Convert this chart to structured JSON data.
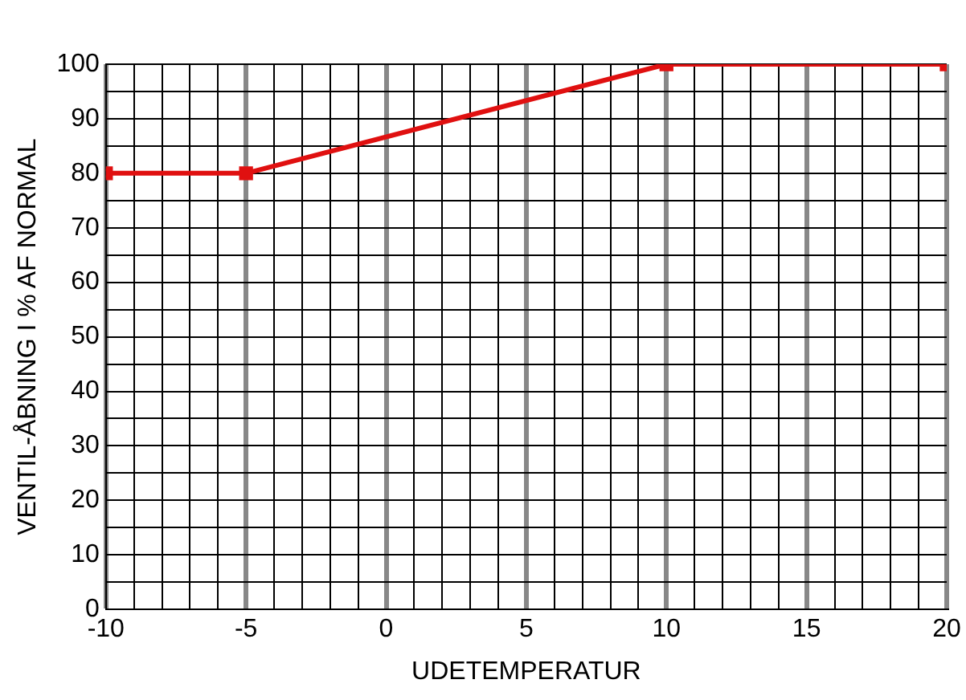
{
  "chart_data": {
    "type": "line",
    "xlabel": "UDETEMPERATUR",
    "ylabel": "VENTIL-ÅBNING I % AF NORMAL",
    "x": [
      -10,
      -5,
      10,
      20
    ],
    "series": [
      {
        "color": "#e01010",
        "values": [
          80,
          80,
          100,
          100
        ]
      }
    ],
    "xlim": [
      -10,
      20
    ],
    "xticks": [
      -10,
      {
        "value": -9,
        "label": null
      },
      {
        "value": -8,
        "label": null
      },
      {
        "value": -7,
        "label": null
      },
      {
        "value": -6,
        "label": null
      },
      -5,
      {
        "value": -4,
        "label": null
      },
      {
        "value": -3,
        "label": null
      },
      {
        "value": -2,
        "label": null
      },
      {
        "value": -1,
        "label": null
      },
      0,
      {
        "value": 1,
        "label": null
      },
      {
        "value": 2,
        "label": null
      },
      {
        "value": 3,
        "label": null
      },
      {
        "value": 4,
        "label": null
      },
      5,
      {
        "value": 6,
        "label": null
      },
      {
        "value": 7,
        "label": null
      },
      {
        "value": 8,
        "label": null
      },
      {
        "value": 9,
        "label": null
      },
      10,
      {
        "value": 11,
        "label": null
      },
      {
        "value": 12,
        "label": null
      },
      {
        "value": 13,
        "label": null
      },
      {
        "value": 14,
        "label": null
      },
      15,
      {
        "value": 16,
        "label": null
      },
      {
        "value": 17,
        "label": null
      },
      {
        "value": 18,
        "label": null
      },
      {
        "value": 19,
        "label": null
      },
      20
    ],
    "ylim": [
      0,
      100
    ],
    "yticks": [
      0,
      {
        "value": 5,
        "label": null
      },
      10,
      {
        "value": 15,
        "label": null
      },
      20,
      {
        "value": 25,
        "label": null
      },
      30,
      {
        "value": 35,
        "label": null
      },
      40,
      {
        "value": 45,
        "label": null
      },
      50,
      {
        "value": 55,
        "label": null
      },
      60,
      {
        "value": 65,
        "label": null
      },
      70,
      {
        "value": 75,
        "label": null
      },
      80,
      {
        "value": 85,
        "label": null
      },
      90,
      {
        "value": 95,
        "label": null
      },
      100
    ],
    "grid": true,
    "legend": false,
    "marker": "square",
    "line_style": "solid"
  }
}
